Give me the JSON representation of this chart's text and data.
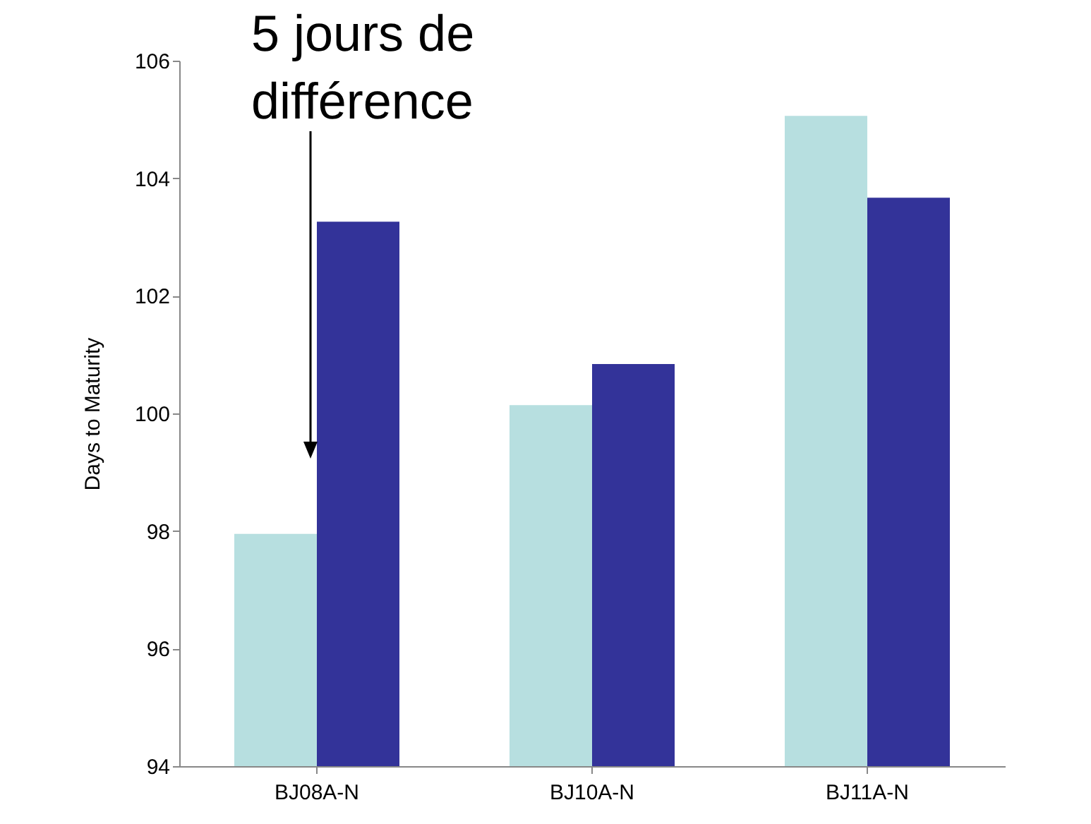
{
  "chart_data": {
    "type": "bar",
    "ylabel": "Days to Maturity",
    "categories": [
      "BJ08A-N",
      "BJ10A-N",
      "BJ11A-N"
    ],
    "series": [
      {
        "color": "#b7dfe0",
        "values": [
          97.95,
          100.14,
          105.06
        ]
      },
      {
        "color": "#333399",
        "values": [
          103.26,
          100.84,
          103.67
        ]
      }
    ],
    "ylim": [
      94,
      106
    ],
    "yticks": [
      94,
      96,
      98,
      100,
      102,
      104,
      106
    ],
    "grid": false,
    "legend": false,
    "annotations": [
      "5 jours de\ndifférence"
    ]
  }
}
